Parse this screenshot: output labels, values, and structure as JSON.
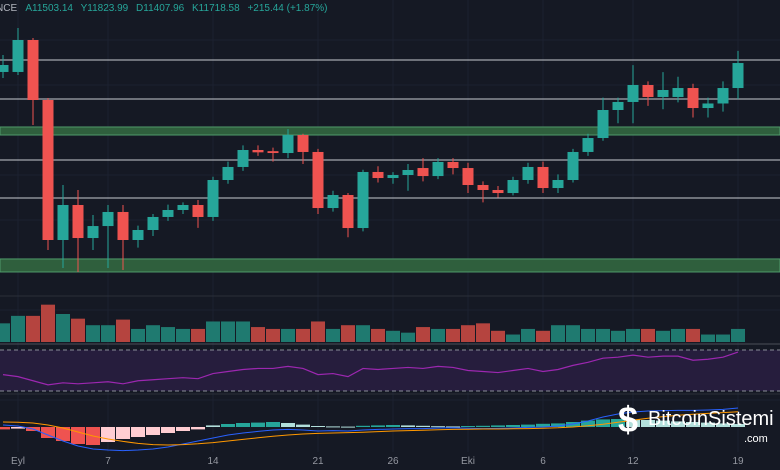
{
  "header": {
    "symbol": "NCE",
    "open": "A11503.14",
    "high": "Y11823.99",
    "low": "D11407.96",
    "close": "K11718.58",
    "change": "+215.44 (+1.87%)"
  },
  "colors": {
    "up": "#26a69a",
    "down": "#ef5350",
    "vol_up": "#1f7a70",
    "vol_down": "#b5443f",
    "band": "#2f5f3d",
    "rsi": "#9c27b0",
    "macd": "#2962ff",
    "signal": "#ff9800"
  },
  "chart_data": {
    "type": "candlestick",
    "price_range": [
      9723,
      12260
    ],
    "candles": [
      [
        11641,
        11787,
        11589,
        11701
      ],
      [
        11641,
        12019,
        11615,
        11916
      ],
      [
        11916,
        11933,
        11185,
        11400
      ],
      [
        11400,
        11417,
        10110,
        10196
      ],
      [
        10196,
        10669,
        9955,
        10497
      ],
      [
        10497,
        10626,
        9921,
        10213
      ],
      [
        10213,
        10411,
        10110,
        10316
      ],
      [
        10316,
        10497,
        9955,
        10437
      ],
      [
        10437,
        10497,
        9938,
        10196
      ],
      [
        10196,
        10320,
        10130,
        10282
      ],
      [
        10282,
        10420,
        10230,
        10394
      ],
      [
        10394,
        10500,
        10360,
        10454
      ],
      [
        10454,
        10520,
        10420,
        10497
      ],
      [
        10497,
        10540,
        10300,
        10394
      ],
      [
        10394,
        10740,
        10360,
        10712
      ],
      [
        10712,
        10870,
        10680,
        10824
      ],
      [
        10824,
        11010,
        10790,
        10970
      ],
      [
        10970,
        11010,
        10920,
        10950
      ],
      [
        10960,
        10990,
        10870,
        10944
      ],
      [
        10944,
        11150,
        10900,
        11099
      ],
      [
        11099,
        11110,
        10850,
        10953
      ],
      [
        10953,
        10980,
        10420,
        10471
      ],
      [
        10471,
        10620,
        10440,
        10583
      ],
      [
        10583,
        10600,
        10220,
        10299
      ],
      [
        10299,
        10800,
        10270,
        10781
      ],
      [
        10781,
        10830,
        10690,
        10729
      ],
      [
        10729,
        10780,
        10680,
        10755
      ],
      [
        10755,
        10850,
        10620,
        10798
      ],
      [
        10815,
        10900,
        10700,
        10746
      ],
      [
        10746,
        10900,
        10720,
        10867
      ],
      [
        10867,
        10900,
        10760,
        10815
      ],
      [
        10815,
        10860,
        10600,
        10669
      ],
      [
        10669,
        10700,
        10520,
        10626
      ],
      [
        10626,
        10660,
        10560,
        10600
      ],
      [
        10600,
        10740,
        10580,
        10712
      ],
      [
        10712,
        10860,
        10680,
        10824
      ],
      [
        10824,
        10870,
        10600,
        10643
      ],
      [
        10643,
        10760,
        10600,
        10712
      ],
      [
        10712,
        10980,
        10690,
        10953
      ],
      [
        10953,
        11110,
        10920,
        11073
      ],
      [
        11073,
        11420,
        11050,
        11314
      ],
      [
        11314,
        11420,
        11200,
        11383
      ],
      [
        11383,
        11700,
        11200,
        11529
      ],
      [
        11529,
        11560,
        11350,
        11426
      ],
      [
        11426,
        11640,
        11320,
        11486
      ],
      [
        11426,
        11600,
        11380,
        11503
      ],
      [
        11503,
        11540,
        11250,
        11331
      ],
      [
        11331,
        11420,
        11250,
        11370
      ],
      [
        11370,
        11560,
        11300,
        11503
      ],
      [
        11503,
        11823,
        11407,
        11718
      ]
    ],
    "levels": [
      11744,
      11409,
      10884,
      10557
    ],
    "zones": [
      [
        11099,
        11168
      ],
      [
        9921,
        10033
      ]
    ],
    "volume": [
      20,
      28,
      28,
      40,
      30,
      25,
      18,
      18,
      24,
      14,
      18,
      16,
      14,
      14,
      22,
      22,
      22,
      16,
      14,
      14,
      14,
      22,
      14,
      18,
      18,
      14,
      12,
      10,
      16,
      14,
      14,
      18,
      20,
      12,
      8,
      14,
      12,
      18,
      18,
      14,
      14,
      12,
      14,
      14,
      12,
      14,
      14,
      8,
      8,
      14
    ],
    "rsi": [
      46,
      44,
      40,
      36,
      38,
      37,
      38,
      39,
      37,
      40,
      41,
      42,
      43,
      42,
      47,
      49,
      51,
      52,
      52,
      54,
      52,
      46,
      47,
      44,
      52,
      51,
      52,
      53,
      52,
      54,
      53,
      50,
      49,
      48,
      50,
      52,
      49,
      51,
      55,
      58,
      62,
      63,
      65,
      63,
      64,
      64,
      60,
      61,
      63,
      68
    ],
    "macd_hist": [
      -12,
      -8,
      -20,
      -55,
      -70,
      -85,
      -90,
      -75,
      -60,
      -50,
      -40,
      -30,
      -20,
      -12,
      8,
      15,
      20,
      22,
      25,
      20,
      12,
      5,
      3,
      2,
      6,
      8,
      10,
      8,
      6,
      4,
      3,
      5,
      6,
      8,
      10,
      12,
      16,
      18,
      25,
      32,
      38,
      40,
      38,
      35,
      32,
      28,
      25,
      22,
      18,
      15
    ],
    "macd_line": [
      10,
      5,
      -10,
      -40,
      -70,
      -95,
      -110,
      -115,
      -118,
      -115,
      -110,
      -100,
      -85,
      -70,
      -55,
      -40,
      -30,
      -22,
      -15,
      -12,
      -15,
      -20,
      -18,
      -20,
      -15,
      -12,
      -10,
      -8,
      -8,
      -5,
      -4,
      -6,
      -8,
      -7,
      -5,
      -2,
      0,
      5,
      15,
      30,
      50,
      65,
      75,
      80,
      82,
      83,
      83,
      85,
      88,
      95
    ],
    "signal_line": [
      25,
      24,
      20,
      10,
      -5,
      -25,
      -45,
      -60,
      -72,
      -82,
      -88,
      -90,
      -88,
      -84,
      -78,
      -70,
      -62,
      -54,
      -46,
      -40,
      -35,
      -32,
      -30,
      -28,
      -26,
      -23,
      -20,
      -18,
      -16,
      -14,
      -12,
      -11,
      -10,
      -10,
      -9,
      -8,
      -6,
      -4,
      0,
      6,
      14,
      24,
      34,
      44,
      52,
      59,
      64,
      68,
      72,
      76
    ],
    "x_ticks": [
      {
        "label": "Eyl",
        "index": 1
      },
      {
        "label": "7",
        "index": 7
      },
      {
        "label": "14",
        "index": 14
      },
      {
        "label": "21",
        "index": 21
      },
      {
        "label": "26",
        "index": 26
      },
      {
        "label": "Eki",
        "index": 31
      },
      {
        "label": "6",
        "index": 36
      },
      {
        "label": "12",
        "index": 42
      },
      {
        "label": "19",
        "index": 49
      }
    ]
  },
  "watermark": {
    "brand": "BitcoinSistemi",
    "domain": ".com"
  }
}
